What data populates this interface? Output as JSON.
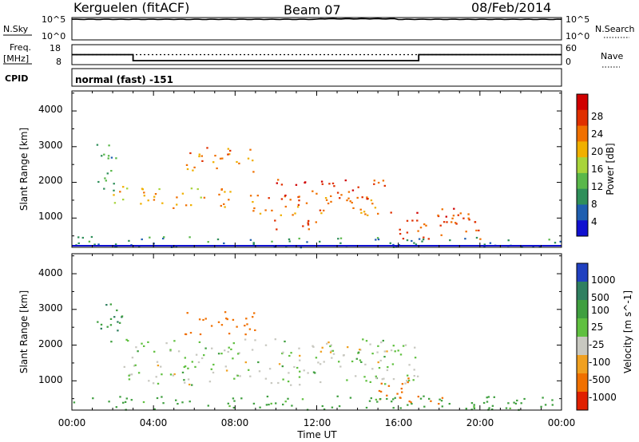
{
  "header": {
    "station": "Kerguelen (fitACF)",
    "beam": "Beam 07",
    "date": "08/Feb/2014"
  },
  "noise_panel": {
    "left_label": "N.Sky",
    "right_label": "N.Search",
    "tick_top": "10^5",
    "tick_bottom": "10^0"
  },
  "freq_panel": {
    "left_label_1": "Freq.",
    "left_label_2": "[MHz]",
    "right_label": "Nave",
    "left_ticks": [
      "18",
      "8"
    ],
    "right_ticks": [
      "60",
      "0"
    ]
  },
  "cpid": {
    "label": "CPID",
    "value": "normal (fast) -151"
  },
  "power_panel": {
    "ylabel": "Slant Range [km]",
    "yticks": [
      "4000",
      "3000",
      "2000",
      "1000"
    ],
    "colorbar_label": "Power [dB]",
    "colorbar_ticks": [
      "28",
      "24",
      "20",
      "16",
      "12",
      "8",
      "4"
    ],
    "colors": [
      "#1010d0",
      "#1f5fb0",
      "#2f8f5a",
      "#5ab84a",
      "#a8d43a",
      "#f0b000",
      "#f07000",
      "#e03000",
      "#d00000"
    ]
  },
  "velocity_panel": {
    "ylabel": "Slant Range [km]",
    "yticks": [
      "4000",
      "3000",
      "2000",
      "1000"
    ],
    "colorbar_label": "Velocity [m s^-1]",
    "colorbar_ticks": [
      "1000",
      "500",
      "100",
      "25",
      "-25",
      "-100",
      "-500",
      "-1000"
    ],
    "colors": [
      "#2040c0",
      "#2f7f60",
      "#3f9f3f",
      "#60c040",
      "#c8c8c0",
      "#f0a020",
      "#f07000",
      "#e02000"
    ]
  },
  "x_axis": {
    "label": "Time UT",
    "ticks": [
      "00:00",
      "04:00",
      "08:00",
      "12:00",
      "16:00",
      "20:00",
      "00:00"
    ]
  },
  "chart_data": {
    "type": "heatmap",
    "x_range_hours": [
      0,
      24
    ],
    "y_range_km": [
      180,
      4560
    ],
    "freq_mhz_segments": [
      {
        "from_h": 0,
        "to_h": 3,
        "value": 13
      },
      {
        "from_h": 3,
        "to_h": 17,
        "value": 10
      },
      {
        "from_h": 17,
        "to_h": 24,
        "value": 13
      }
    ],
    "nave_level": 30,
    "noise_level_log10": 4.6,
    "power_regions_db": [
      {
        "t0": 1.2,
        "t1": 2.2,
        "r0": 1600,
        "r1": 3200,
        "value": 10
      },
      {
        "t0": 2.0,
        "t1": 8.0,
        "r0": 1300,
        "r1": 1900,
        "value": 20
      },
      {
        "t0": 5.5,
        "t1": 9.0,
        "r0": 2300,
        "r1": 3000,
        "value": 22
      },
      {
        "t0": 8.0,
        "t1": 15.0,
        "r0": 1100,
        "r1": 1700,
        "value": 22
      },
      {
        "t0": 10.0,
        "t1": 15.5,
        "r0": 1500,
        "r1": 2100,
        "value": 26
      },
      {
        "t0": 9.5,
        "t1": 12.0,
        "r0": 700,
        "r1": 1000,
        "value": 24
      },
      {
        "t0": 15.5,
        "t1": 20.0,
        "r0": 400,
        "r1": 1300,
        "value": 26
      },
      {
        "t0": 0.0,
        "t1": 24.0,
        "r0": 200,
        "r1": 500,
        "value": 8
      }
    ],
    "velocity_regions_ms": [
      {
        "t0": 1.2,
        "t1": 2.5,
        "r0": 2000,
        "r1": 3200,
        "value": 100
      },
      {
        "t0": 5.5,
        "t1": 9.0,
        "r0": 2300,
        "r1": 3000,
        "value": -200
      },
      {
        "t0": 2.5,
        "t1": 17.0,
        "r0": 900,
        "r1": 2200,
        "value": 0
      },
      {
        "t0": 14.5,
        "t1": 16.5,
        "r0": 500,
        "r1": 1200,
        "value": -300
      },
      {
        "t0": 16.5,
        "t1": 18.5,
        "r0": 300,
        "r1": 600,
        "value": -200
      },
      {
        "t0": 0.0,
        "t1": 24.0,
        "r0": 200,
        "r1": 600,
        "value": 50
      }
    ]
  }
}
